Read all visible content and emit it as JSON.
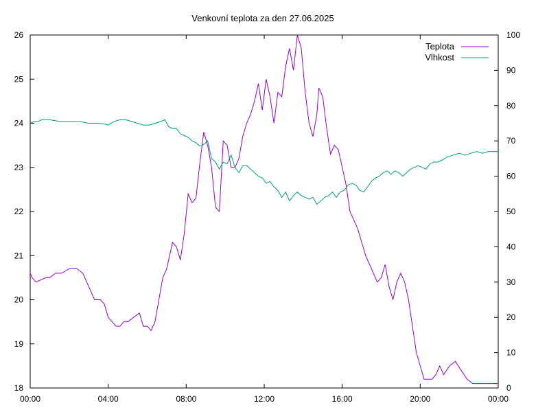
{
  "chart_data": {
    "type": "line",
    "title": "Venkovní teplota za den 27.06.2025",
    "xlabel": "",
    "ylabel": "",
    "y2label": "",
    "x_ticks": [
      "00:00",
      "04:00",
      "08:00",
      "12:00",
      "16:00",
      "20:00",
      "00:00"
    ],
    "xlim_hours": [
      0,
      24
    ],
    "ylim": [
      18,
      26
    ],
    "y_ticks": [
      "18",
      "19",
      "20",
      "21",
      "22",
      "23",
      "24",
      "25",
      "26"
    ],
    "y2lim": [
      0,
      100
    ],
    "y2_ticks": [
      "0",
      "10",
      "20",
      "30",
      "40",
      "50",
      "60",
      "70",
      "80",
      "90",
      "100"
    ],
    "grid": false,
    "legend_position": "top-right",
    "series": [
      {
        "name": "Teplota",
        "axis": "left",
        "color": "#9400d3",
        "x_hours": [
          0.0,
          0.1,
          0.3,
          0.8,
          1.0,
          1.3,
          1.6,
          2.0,
          2.4,
          2.7,
          2.9,
          3.1,
          3.3,
          3.6,
          3.8,
          4.0,
          4.2,
          4.4,
          4.6,
          4.8,
          5.0,
          5.3,
          5.6,
          5.8,
          6.0,
          6.2,
          6.4,
          6.6,
          6.8,
          7.0,
          7.3,
          7.5,
          7.7,
          7.9,
          8.1,
          8.3,
          8.5,
          8.7,
          8.9,
          9.1,
          9.3,
          9.5,
          9.7,
          9.9,
          10.1,
          10.3,
          10.5,
          10.7,
          10.9,
          11.1,
          11.3,
          11.5,
          11.7,
          11.9,
          12.1,
          12.3,
          12.5,
          12.7,
          12.9,
          13.1,
          13.3,
          13.5,
          13.7,
          13.9,
          14.1,
          14.3,
          14.5,
          14.7,
          14.8,
          15.0,
          15.2,
          15.4,
          15.6,
          15.8,
          16.0,
          16.2,
          16.4,
          16.6,
          16.8,
          17.0,
          17.2,
          17.4,
          17.6,
          17.8,
          18.0,
          18.2,
          18.4,
          18.6,
          18.8,
          19.0,
          19.2,
          19.4,
          19.6,
          19.8,
          20.0,
          20.2,
          20.4,
          20.6,
          20.8,
          21.0,
          21.2,
          21.5,
          21.8,
          22.1,
          22.4,
          22.7,
          23.0,
          23.3,
          23.6,
          23.9,
          24.0
        ],
        "values": [
          20.6,
          20.5,
          20.4,
          20.5,
          20.5,
          20.6,
          20.6,
          20.7,
          20.7,
          20.6,
          20.4,
          20.2,
          20.0,
          20.0,
          19.9,
          19.6,
          19.5,
          19.4,
          19.4,
          19.5,
          19.5,
          19.6,
          19.7,
          19.4,
          19.4,
          19.3,
          19.5,
          20.0,
          20.5,
          20.7,
          21.3,
          21.2,
          20.9,
          21.5,
          22.4,
          22.2,
          22.3,
          23.1,
          23.8,
          23.5,
          23.0,
          22.1,
          22.0,
          23.6,
          23.5,
          23.0,
          23.0,
          23.2,
          23.7,
          24.0,
          24.2,
          24.5,
          24.9,
          24.3,
          25.0,
          24.6,
          24.0,
          24.7,
          24.6,
          25.3,
          25.7,
          25.2,
          26.0,
          25.7,
          24.7,
          24.0,
          23.7,
          24.2,
          24.8,
          24.6,
          23.9,
          23.3,
          23.5,
          23.4,
          23.0,
          22.6,
          22.0,
          21.8,
          21.6,
          21.3,
          21.0,
          20.8,
          20.6,
          20.4,
          20.5,
          20.8,
          20.3,
          20.0,
          20.4,
          20.6,
          20.4,
          20.0,
          19.4,
          18.8,
          18.5,
          18.2,
          18.2,
          18.2,
          18.3,
          18.5,
          18.3,
          18.5,
          18.6,
          18.4,
          18.2,
          18.1,
          18.1,
          18.1,
          18.1,
          18.1,
          18.1
        ]
      },
      {
        "name": "Vlhkost",
        "axis": "right",
        "color": "#009e73",
        "x_hours": [
          0.0,
          0.2,
          0.4,
          0.6,
          0.8,
          1.0,
          1.5,
          2.0,
          2.5,
          3.0,
          3.5,
          3.8,
          4.0,
          4.3,
          4.6,
          4.9,
          5.2,
          5.5,
          5.8,
          6.1,
          6.4,
          6.7,
          6.9,
          7.1,
          7.3,
          7.5,
          7.7,
          7.9,
          8.1,
          8.3,
          8.5,
          8.7,
          8.9,
          9.1,
          9.3,
          9.5,
          9.7,
          9.9,
          10.1,
          10.3,
          10.5,
          10.7,
          10.9,
          11.1,
          11.3,
          11.5,
          11.7,
          11.9,
          12.1,
          12.3,
          12.5,
          12.7,
          12.9,
          13.1,
          13.3,
          13.5,
          13.7,
          13.9,
          14.1,
          14.3,
          14.5,
          14.7,
          14.9,
          15.1,
          15.3,
          15.5,
          15.7,
          15.9,
          16.1,
          16.3,
          16.5,
          16.7,
          16.9,
          17.1,
          17.3,
          17.5,
          17.7,
          17.9,
          18.1,
          18.3,
          18.5,
          18.7,
          18.9,
          19.1,
          19.3,
          19.5,
          19.7,
          19.9,
          20.1,
          20.3,
          20.5,
          20.7,
          20.9,
          21.1,
          21.4,
          21.7,
          22.0,
          22.3,
          22.6,
          22.9,
          23.2,
          23.5,
          24.0
        ],
        "values": [
          75.0,
          75.5,
          75.5,
          76.0,
          76.0,
          76.0,
          75.5,
          75.5,
          75.5,
          75.0,
          75.0,
          74.8,
          74.5,
          75.5,
          76.0,
          76.0,
          75.5,
          75.0,
          74.5,
          74.5,
          75.0,
          75.5,
          76.0,
          74.0,
          73.5,
          73.5,
          72.0,
          71.5,
          71.0,
          70.0,
          69.5,
          68.5,
          69.0,
          70.0,
          65.0,
          64.0,
          62.0,
          64.0,
          63.5,
          66.0,
          62.5,
          61.0,
          63.0,
          63.0,
          62.0,
          61.0,
          60.0,
          59.5,
          58.0,
          58.5,
          57.0,
          56.0,
          54.0,
          55.5,
          53.0,
          54.5,
          55.5,
          54.5,
          54.0,
          53.5,
          54.0,
          52.0,
          53.0,
          54.0,
          54.5,
          55.5,
          54.0,
          55.5,
          56.0,
          57.5,
          58.0,
          57.5,
          56.0,
          55.5,
          57.0,
          58.5,
          59.5,
          60.0,
          61.0,
          61.5,
          60.5,
          61.5,
          61.0,
          60.0,
          61.0,
          62.0,
          62.5,
          63.0,
          62.5,
          62.0,
          63.5,
          64.0,
          64.0,
          64.5,
          65.5,
          66.0,
          66.5,
          66.0,
          66.5,
          67.0,
          66.5,
          67.0,
          67.0
        ]
      }
    ]
  }
}
